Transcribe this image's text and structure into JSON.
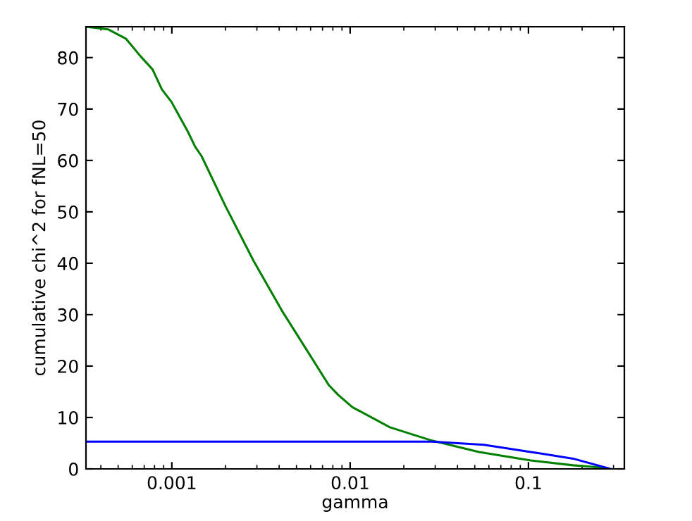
{
  "chart_data": {
    "type": "line",
    "xlabel": "gamma",
    "ylabel": "cumulative chi^2 for fNL=50",
    "log": "x",
    "grid": false,
    "legend": false,
    "xlim": [
      0.00033,
      0.345
    ],
    "xticks": [
      0.001,
      0.01,
      0.1
    ],
    "ylim": [
      0,
      86
    ],
    "yticks": [
      0,
      10,
      20,
      30,
      40,
      50,
      60,
      70,
      80
    ],
    "series": [
      {
        "color": "#008000",
        "x": [
          0.000333,
          0.000439,
          0.000552,
          0.00067,
          0.00078,
          0.00088,
          0.000995,
          0.00123,
          0.00135,
          0.00147,
          0.002,
          0.00287,
          0.00414,
          0.00596,
          0.00759,
          0.00857,
          0.0103,
          0.0167,
          0.0288,
          0.0528,
          0.103,
          0.178,
          0.272
        ],
        "values": [
          86,
          85.5,
          83.7,
          80.2,
          77.7,
          73.8,
          71.4,
          65.6,
          62.7,
          60.8,
          51.1,
          40.5,
          30.8,
          22.1,
          16.3,
          14.4,
          12.0,
          8.1,
          5.5,
          3.3,
          1.65,
          0.7,
          0.2
        ]
      },
      {
        "color": "#0000ff",
        "x": [
          0.000333,
          0.0288,
          0.0562,
          0.103,
          0.178,
          0.289
        ],
        "values": [
          5.3,
          5.3,
          4.7,
          3.3,
          2.0,
          0
        ]
      }
    ]
  }
}
